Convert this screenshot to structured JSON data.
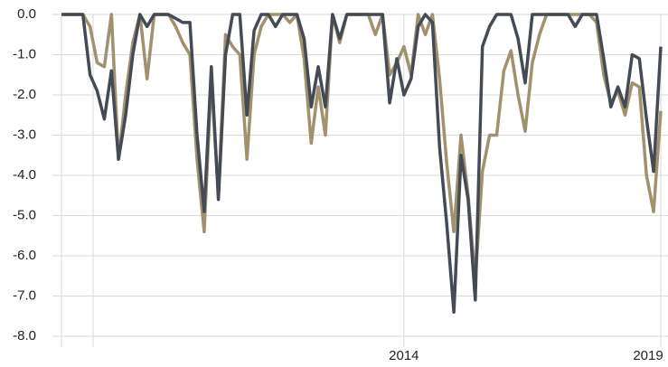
{
  "chart_data": {
    "type": "line",
    "categories": [
      null,
      null,
      null,
      null,
      null,
      null,
      null,
      null,
      null,
      null,
      null,
      null,
      null,
      null,
      null,
      null,
      null,
      null,
      null,
      null,
      null,
      null,
      null,
      null,
      null,
      null,
      null,
      null,
      null,
      null,
      null,
      null,
      null,
      null,
      null,
      null,
      null,
      null,
      null,
      null,
      null,
      null,
      null,
      null,
      null,
      null,
      null,
      null,
      "2014",
      null,
      null,
      null,
      null,
      null,
      null,
      null,
      null,
      null,
      null,
      null,
      null,
      null,
      null,
      null,
      null,
      null,
      null,
      null,
      null,
      null,
      null,
      null,
      null,
      null,
      null,
      null,
      null,
      null,
      null,
      null,
      null,
      null,
      null,
      null,
      "2019"
    ],
    "series": [
      {
        "color": "#a0916f",
        "values": [
          0,
          0,
          0,
          0,
          -0.3,
          -1.2,
          -1.3,
          0,
          -3.6,
          -2.0,
          -0.7,
          0,
          -1.6,
          0,
          0,
          0,
          -0.3,
          -0.7,
          -1.0,
          -3.6,
          -5.4,
          -1.6,
          -4.5,
          -0.5,
          -0.8,
          -1.0,
          -3.6,
          -1.0,
          -0.3,
          0,
          0,
          0,
          -0.2,
          0,
          -1.1,
          -3.2,
          -1.8,
          -3.0,
          0,
          -0.7,
          0,
          0,
          0,
          0,
          -0.5,
          0,
          -1.5,
          -1.2,
          -0.8,
          -1.5,
          0,
          -0.5,
          0,
          -1.6,
          -3.7,
          -5.4,
          -3.0,
          -4.5,
          -6.6,
          -3.9,
          -3.0,
          -3.0,
          -1.4,
          -0.9,
          -2.0,
          -2.9,
          -1.2,
          -0.5,
          0,
          0,
          0,
          0,
          0,
          0,
          0,
          -0.2,
          -1.5,
          -2.2,
          -1.9,
          -2.5,
          -1.7,
          -1.8,
          -4.0,
          -4.9,
          -2.4
        ]
      },
      {
        "color": "#454b55",
        "values": [
          0,
          0,
          0,
          0,
          -1.5,
          -1.9,
          -2.6,
          -1.4,
          -3.6,
          -2.5,
          -1.0,
          0,
          -0.3,
          0,
          0,
          0,
          -0.1,
          -0.2,
          -0.2,
          -3.0,
          -4.9,
          -1.3,
          -4.6,
          -1.0,
          0,
          0,
          -2.5,
          -0.4,
          0,
          0,
          -0.3,
          0,
          0,
          0,
          -0.6,
          -2.3,
          -1.3,
          -2.3,
          0,
          -0.6,
          0,
          0,
          0,
          0,
          0,
          0,
          -2.2,
          -1.1,
          -2.0,
          -1.6,
          -0.3,
          0,
          -0.2,
          -3.3,
          -5.2,
          -7.4,
          -3.5,
          -4.6,
          -7.1,
          -0.8,
          -0.3,
          0,
          0,
          0,
          -0.6,
          -1.7,
          0,
          0,
          0,
          0,
          0,
          0,
          -0.3,
          0,
          0,
          0,
          -1.1,
          -2.3,
          -1.8,
          -2.3,
          -1.0,
          -1.1,
          -2.6,
          -3.9,
          -0.8
        ]
      }
    ],
    "ylim": [
      -8,
      0
    ],
    "yticks": [
      {
        "value": -8,
        "label": "-8.0"
      },
      {
        "value": -7,
        "label": "-7.0"
      },
      {
        "value": -6,
        "label": "-6.0"
      },
      {
        "value": -5,
        "label": "-5.0"
      },
      {
        "value": -4,
        "label": "-4.0"
      },
      {
        "value": -3,
        "label": "-3.0"
      },
      {
        "value": -2,
        "label": "-2.0"
      },
      {
        "value": -1,
        "label": "-1.0"
      },
      {
        "value": 0,
        "label": "0.0"
      }
    ],
    "grid": true
  }
}
